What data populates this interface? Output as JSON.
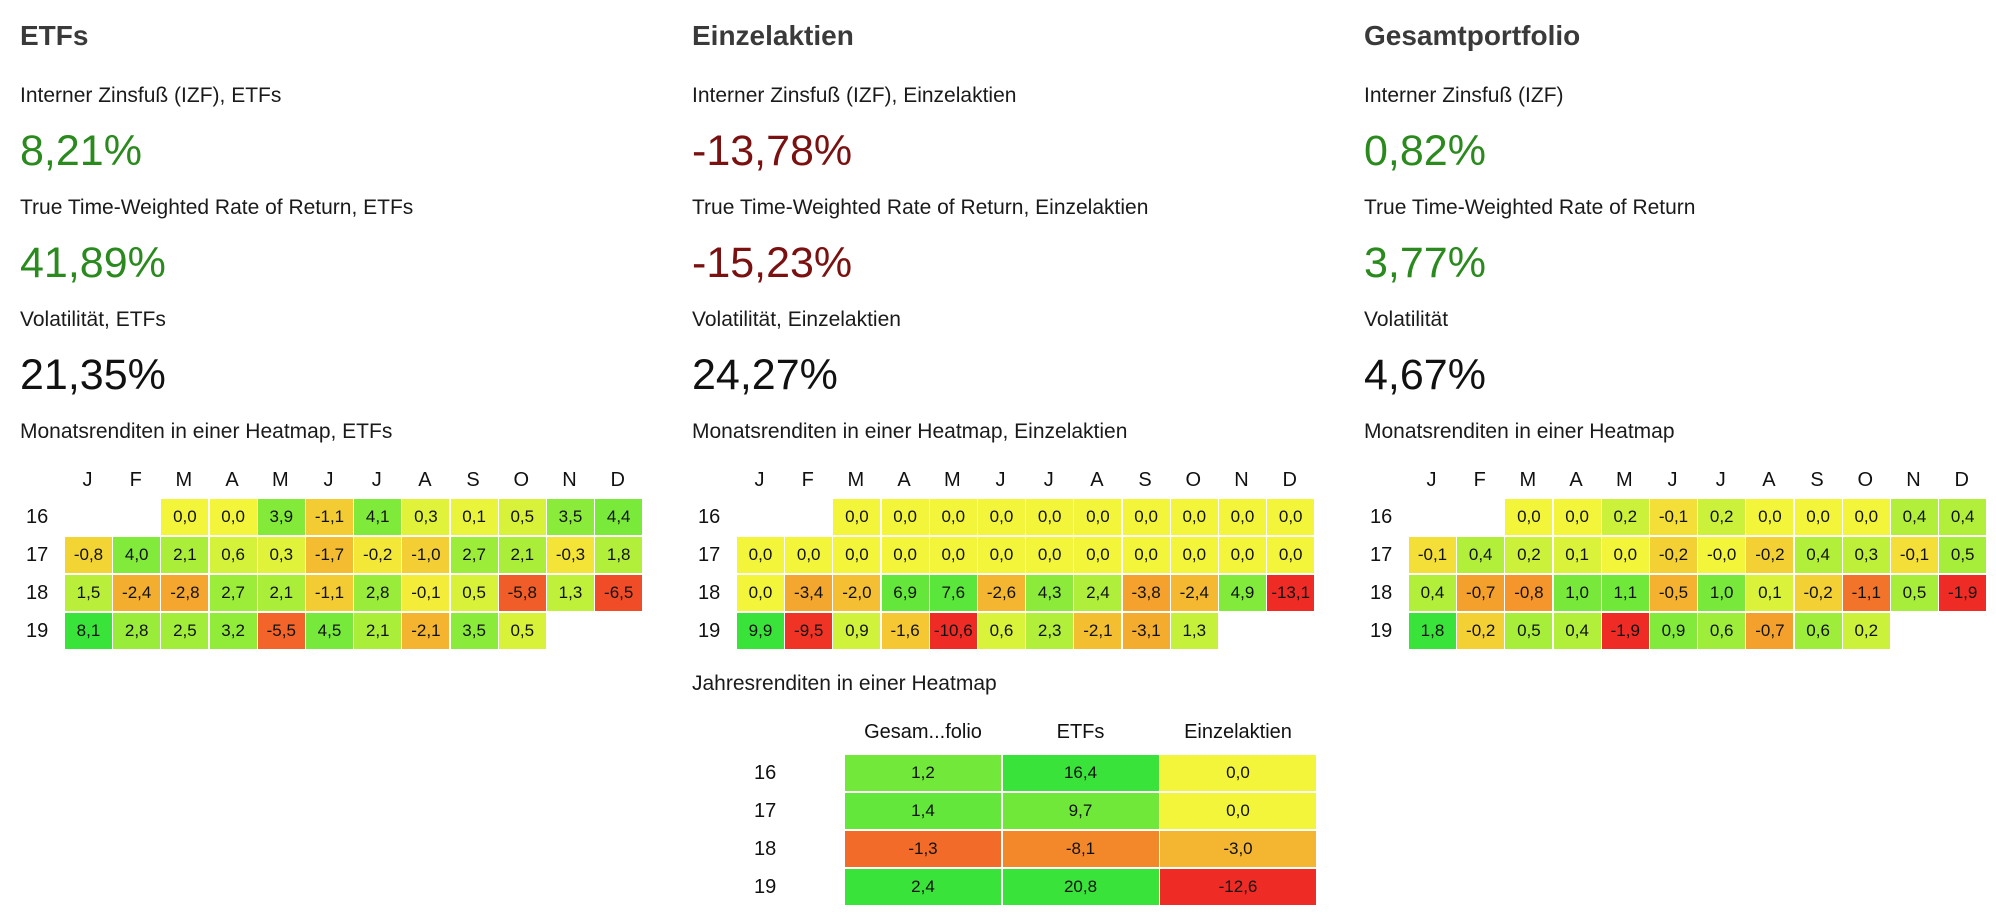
{
  "months": [
    "J",
    "F",
    "M",
    "A",
    "M",
    "J",
    "J",
    "A",
    "S",
    "O",
    "N",
    "D"
  ],
  "panels": [
    {
      "title": "ETFs",
      "irr_label": "Interner Zinsfuß (IZF), ETFs",
      "irr_value": "8,21%",
      "irr_sign": "pos",
      "ttwror_label": "True Time-Weighted Rate of Return, ETFs",
      "ttwror_value": "41,89%",
      "ttwror_sign": "pos",
      "vol_label": "Volatilität, ETFs",
      "vol_value": "21,35%",
      "heatmap_label": "Monatsrenditen in einer Heatmap, ETFs",
      "rows": [
        {
          "year": "16",
          "values": [
            null,
            null,
            0.0,
            0.0,
            3.9,
            -1.1,
            4.1,
            0.3,
            0.1,
            0.5,
            3.5,
            4.4
          ]
        },
        {
          "year": "17",
          "values": [
            -0.8,
            4.0,
            2.1,
            0.6,
            0.3,
            -1.7,
            -0.2,
            -1.0,
            2.7,
            2.1,
            -0.3,
            1.8
          ]
        },
        {
          "year": "18",
          "values": [
            1.5,
            -2.4,
            -2.8,
            2.7,
            2.1,
            -1.1,
            2.8,
            -0.1,
            0.5,
            -5.8,
            1.3,
            -6.5
          ]
        },
        {
          "year": "19",
          "values": [
            8.1,
            2.8,
            2.5,
            3.2,
            -5.5,
            4.5,
            2.1,
            -2.1,
            3.5,
            0.5,
            null,
            null
          ]
        }
      ]
    },
    {
      "title": "Einzelaktien",
      "irr_label": "Interner Zinsfuß (IZF), Einzelaktien",
      "irr_value": "-13,78%",
      "irr_sign": "neg",
      "ttwror_label": "True Time-Weighted Rate of Return, Einzelaktien",
      "ttwror_value": "-15,23%",
      "ttwror_sign": "neg",
      "vol_label": "Volatilität, Einzelaktien",
      "vol_value": "24,27%",
      "heatmap_label": "Monatsrenditen in einer Heatmap, Einzelaktien",
      "rows": [
        {
          "year": "16",
          "values": [
            null,
            null,
            0.0,
            0.0,
            0.0,
            0.0,
            0.0,
            0.0,
            0.0,
            0.0,
            0.0,
            0.0
          ]
        },
        {
          "year": "17",
          "values": [
            0.0,
            0.0,
            0.0,
            0.0,
            0.0,
            0.0,
            0.0,
            0.0,
            0.0,
            0.0,
            0.0,
            0.0
          ]
        },
        {
          "year": "18",
          "values": [
            0.0,
            -3.4,
            -2.0,
            6.9,
            7.6,
            -2.6,
            4.3,
            2.4,
            -3.8,
            -2.4,
            4.9,
            -13.1
          ]
        },
        {
          "year": "19",
          "values": [
            9.9,
            -9.5,
            0.9,
            -1.6,
            -10.6,
            0.6,
            2.3,
            -2.1,
            -3.1,
            1.3,
            null,
            null
          ]
        }
      ]
    },
    {
      "title": "Gesamtportfolio",
      "irr_label": "Interner Zinsfuß (IZF)",
      "irr_value": "0,82%",
      "irr_sign": "pos",
      "ttwror_label": "True Time-Weighted Rate of Return",
      "ttwror_value": "3,77%",
      "ttwror_sign": "pos",
      "vol_label": "Volatilität",
      "vol_value": "4,67%",
      "heatmap_label": "Monatsrenditen in einer Heatmap",
      "rows": [
        {
          "year": "16",
          "values": [
            null,
            null,
            0.0,
            0.0,
            0.2,
            -0.1,
            0.2,
            0.0,
            0.0,
            0.0,
            0.4,
            0.4
          ]
        },
        {
          "year": "17",
          "values": [
            -0.1,
            0.4,
            0.2,
            0.1,
            0.0,
            -0.2,
            "-0.0",
            -0.2,
            0.4,
            0.3,
            -0.1,
            0.5
          ]
        },
        {
          "year": "18",
          "values": [
            0.4,
            -0.7,
            -0.8,
            1.0,
            1.1,
            -0.5,
            1.0,
            0.1,
            -0.2,
            -1.1,
            0.5,
            -1.9
          ]
        },
        {
          "year": "19",
          "values": [
            1.8,
            -0.2,
            0.5,
            0.4,
            -1.9,
            0.9,
            0.6,
            -0.7,
            0.6,
            0.2,
            null,
            null
          ]
        }
      ]
    }
  ],
  "yearly": {
    "label": "Jahresrenditen in einer Heatmap",
    "columns": [
      "Gesam...folio",
      "ETFs",
      "Einzelaktien"
    ],
    "rows": [
      {
        "year": "16",
        "values": [
          1.2,
          16.4,
          0.0
        ]
      },
      {
        "year": "17",
        "values": [
          1.4,
          9.7,
          0.0
        ]
      },
      {
        "year": "18",
        "values": [
          -1.3,
          -8.1,
          -3.0
        ]
      },
      {
        "year": "19",
        "values": [
          2.4,
          20.8,
          -12.6
        ]
      }
    ]
  },
  "colors": {
    "positive_text": "#2a8a1e",
    "negative_text": "#7a1010",
    "heat_zero": "#f3f53a",
    "heat_pos_max": "#39e33a",
    "heat_neg_max": "#ef2b26"
  }
}
